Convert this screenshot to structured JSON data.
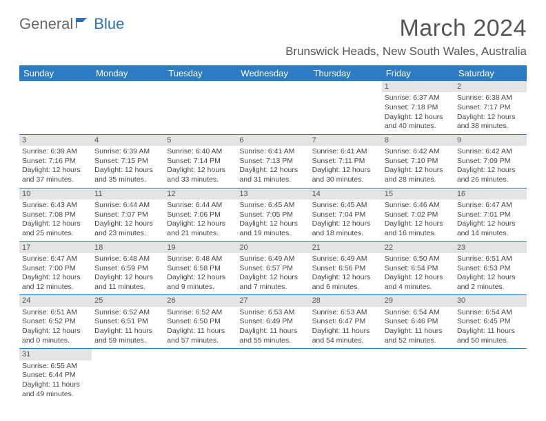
{
  "logo": {
    "part1": "General",
    "part2": "Blue"
  },
  "title": "March 2024",
  "location": "Brunswick Heads, New South Wales, Australia",
  "colors": {
    "header_bg": "#2d7bc2",
    "header_fg": "#ffffff",
    "day_bg": "#e4e4e4",
    "rule": "#2d7bc2",
    "logo_accent": "#2d6fb5"
  },
  "weekdays": [
    "Sunday",
    "Monday",
    "Tuesday",
    "Wednesday",
    "Thursday",
    "Friday",
    "Saturday"
  ],
  "weeks": [
    [
      null,
      null,
      null,
      null,
      null,
      {
        "n": "1",
        "sr": "Sunrise: 6:37 AM",
        "ss": "Sunset: 7:18 PM",
        "d1": "Daylight: 12 hours",
        "d2": "and 40 minutes."
      },
      {
        "n": "2",
        "sr": "Sunrise: 6:38 AM",
        "ss": "Sunset: 7:17 PM",
        "d1": "Daylight: 12 hours",
        "d2": "and 38 minutes."
      }
    ],
    [
      {
        "n": "3",
        "sr": "Sunrise: 6:39 AM",
        "ss": "Sunset: 7:16 PM",
        "d1": "Daylight: 12 hours",
        "d2": "and 37 minutes."
      },
      {
        "n": "4",
        "sr": "Sunrise: 6:39 AM",
        "ss": "Sunset: 7:15 PM",
        "d1": "Daylight: 12 hours",
        "d2": "and 35 minutes."
      },
      {
        "n": "5",
        "sr": "Sunrise: 6:40 AM",
        "ss": "Sunset: 7:14 PM",
        "d1": "Daylight: 12 hours",
        "d2": "and 33 minutes."
      },
      {
        "n": "6",
        "sr": "Sunrise: 6:41 AM",
        "ss": "Sunset: 7:13 PM",
        "d1": "Daylight: 12 hours",
        "d2": "and 31 minutes."
      },
      {
        "n": "7",
        "sr": "Sunrise: 6:41 AM",
        "ss": "Sunset: 7:11 PM",
        "d1": "Daylight: 12 hours",
        "d2": "and 30 minutes."
      },
      {
        "n": "8",
        "sr": "Sunrise: 6:42 AM",
        "ss": "Sunset: 7:10 PM",
        "d1": "Daylight: 12 hours",
        "d2": "and 28 minutes."
      },
      {
        "n": "9",
        "sr": "Sunrise: 6:42 AM",
        "ss": "Sunset: 7:09 PM",
        "d1": "Daylight: 12 hours",
        "d2": "and 26 minutes."
      }
    ],
    [
      {
        "n": "10",
        "sr": "Sunrise: 6:43 AM",
        "ss": "Sunset: 7:08 PM",
        "d1": "Daylight: 12 hours",
        "d2": "and 25 minutes."
      },
      {
        "n": "11",
        "sr": "Sunrise: 6:44 AM",
        "ss": "Sunset: 7:07 PM",
        "d1": "Daylight: 12 hours",
        "d2": "and 23 minutes."
      },
      {
        "n": "12",
        "sr": "Sunrise: 6:44 AM",
        "ss": "Sunset: 7:06 PM",
        "d1": "Daylight: 12 hours",
        "d2": "and 21 minutes."
      },
      {
        "n": "13",
        "sr": "Sunrise: 6:45 AM",
        "ss": "Sunset: 7:05 PM",
        "d1": "Daylight: 12 hours",
        "d2": "and 19 minutes."
      },
      {
        "n": "14",
        "sr": "Sunrise: 6:45 AM",
        "ss": "Sunset: 7:04 PM",
        "d1": "Daylight: 12 hours",
        "d2": "and 18 minutes."
      },
      {
        "n": "15",
        "sr": "Sunrise: 6:46 AM",
        "ss": "Sunset: 7:02 PM",
        "d1": "Daylight: 12 hours",
        "d2": "and 16 minutes."
      },
      {
        "n": "16",
        "sr": "Sunrise: 6:47 AM",
        "ss": "Sunset: 7:01 PM",
        "d1": "Daylight: 12 hours",
        "d2": "and 14 minutes."
      }
    ],
    [
      {
        "n": "17",
        "sr": "Sunrise: 6:47 AM",
        "ss": "Sunset: 7:00 PM",
        "d1": "Daylight: 12 hours",
        "d2": "and 12 minutes."
      },
      {
        "n": "18",
        "sr": "Sunrise: 6:48 AM",
        "ss": "Sunset: 6:59 PM",
        "d1": "Daylight: 12 hours",
        "d2": "and 11 minutes."
      },
      {
        "n": "19",
        "sr": "Sunrise: 6:48 AM",
        "ss": "Sunset: 6:58 PM",
        "d1": "Daylight: 12 hours",
        "d2": "and 9 minutes."
      },
      {
        "n": "20",
        "sr": "Sunrise: 6:49 AM",
        "ss": "Sunset: 6:57 PM",
        "d1": "Daylight: 12 hours",
        "d2": "and 7 minutes."
      },
      {
        "n": "21",
        "sr": "Sunrise: 6:49 AM",
        "ss": "Sunset: 6:56 PM",
        "d1": "Daylight: 12 hours",
        "d2": "and 6 minutes."
      },
      {
        "n": "22",
        "sr": "Sunrise: 6:50 AM",
        "ss": "Sunset: 6:54 PM",
        "d1": "Daylight: 12 hours",
        "d2": "and 4 minutes."
      },
      {
        "n": "23",
        "sr": "Sunrise: 6:51 AM",
        "ss": "Sunset: 6:53 PM",
        "d1": "Daylight: 12 hours",
        "d2": "and 2 minutes."
      }
    ],
    [
      {
        "n": "24",
        "sr": "Sunrise: 6:51 AM",
        "ss": "Sunset: 6:52 PM",
        "d1": "Daylight: 12 hours",
        "d2": "and 0 minutes."
      },
      {
        "n": "25",
        "sr": "Sunrise: 6:52 AM",
        "ss": "Sunset: 6:51 PM",
        "d1": "Daylight: 11 hours",
        "d2": "and 59 minutes."
      },
      {
        "n": "26",
        "sr": "Sunrise: 6:52 AM",
        "ss": "Sunset: 6:50 PM",
        "d1": "Daylight: 11 hours",
        "d2": "and 57 minutes."
      },
      {
        "n": "27",
        "sr": "Sunrise: 6:53 AM",
        "ss": "Sunset: 6:49 PM",
        "d1": "Daylight: 11 hours",
        "d2": "and 55 minutes."
      },
      {
        "n": "28",
        "sr": "Sunrise: 6:53 AM",
        "ss": "Sunset: 6:47 PM",
        "d1": "Daylight: 11 hours",
        "d2": "and 54 minutes."
      },
      {
        "n": "29",
        "sr": "Sunrise: 6:54 AM",
        "ss": "Sunset: 6:46 PM",
        "d1": "Daylight: 11 hours",
        "d2": "and 52 minutes."
      },
      {
        "n": "30",
        "sr": "Sunrise: 6:54 AM",
        "ss": "Sunset: 6:45 PM",
        "d1": "Daylight: 11 hours",
        "d2": "and 50 minutes."
      }
    ],
    [
      {
        "n": "31",
        "sr": "Sunrise: 6:55 AM",
        "ss": "Sunset: 6:44 PM",
        "d1": "Daylight: 11 hours",
        "d2": "and 49 minutes."
      },
      null,
      null,
      null,
      null,
      null,
      null
    ]
  ]
}
